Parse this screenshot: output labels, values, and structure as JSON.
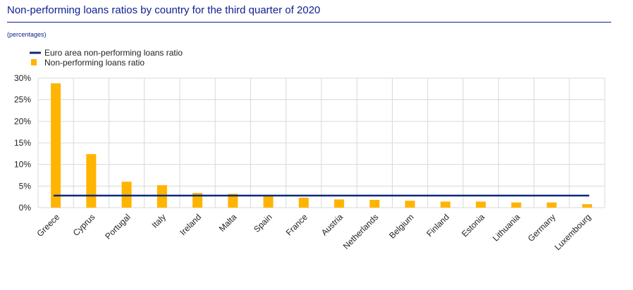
{
  "header": {
    "title": "Non-performing loans ratios by country for the third quarter of 2020",
    "subtitle": "(percentages)"
  },
  "colors": {
    "title": "#10208f",
    "bar": "#ffb400",
    "euro_line": "#0c2a7a",
    "grid": "#d9d9d9"
  },
  "chart_data": {
    "type": "bar",
    "categories": [
      "Greece",
      "Cyprus",
      "Portugal",
      "Italy",
      "Ireland",
      "Malta",
      "Spain",
      "France",
      "Austria",
      "Netherlands",
      "Belgium",
      "Finland",
      "Estonia",
      "Lithuania",
      "Germany",
      "Luxembourg"
    ],
    "series": [
      {
        "name": "Non-performing loans ratio",
        "type": "bar",
        "values": [
          28.8,
          12.4,
          6.0,
          5.2,
          3.4,
          3.2,
          2.8,
          2.3,
          1.9,
          1.8,
          1.6,
          1.4,
          1.4,
          1.2,
          1.2,
          0.8
        ]
      },
      {
        "name": "Euro area non-performing loans ratio",
        "type": "line",
        "value": 2.8
      }
    ],
    "ylim": [
      0,
      30
    ],
    "yticks": [
      0,
      5,
      10,
      15,
      20,
      25,
      30
    ],
    "ytick_labels": [
      "0%",
      "5%",
      "10%",
      "15%",
      "20%",
      "25%",
      "30%"
    ],
    "grid": true,
    "legend_position": "top-left"
  }
}
